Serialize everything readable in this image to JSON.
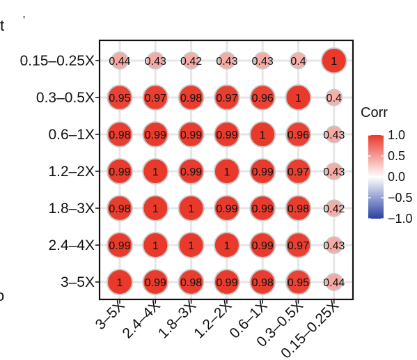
{
  "page": {
    "fragments": [
      "t",
      "'",
      "o"
    ]
  },
  "chart_data": {
    "type": "heatmap",
    "rows": [
      "0.15–0.25X",
      "0.3–0.5X",
      "0.6–1X",
      "1.2–2X",
      "1.8–3X",
      "2.4–4X",
      "3–5X"
    ],
    "columns": [
      "3–5X",
      "2.4–4X",
      "1.8–3X",
      "1.2–2X",
      "0.6–1X",
      "0.3–0.5X",
      "0.15–0.25X"
    ],
    "values": [
      [
        0.44,
        0.43,
        0.42,
        0.43,
        0.43,
        0.4,
        1
      ],
      [
        0.95,
        0.97,
        0.98,
        0.97,
        0.96,
        1,
        0.4
      ],
      [
        0.98,
        0.99,
        0.99,
        0.99,
        1,
        0.96,
        0.43
      ],
      [
        0.99,
        1,
        0.99,
        1,
        0.99,
        0.97,
        0.43
      ],
      [
        0.98,
        1,
        1,
        0.99,
        0.99,
        0.98,
        0.42
      ],
      [
        0.99,
        1,
        1,
        1,
        0.99,
        0.97,
        0.43
      ],
      [
        1,
        0.99,
        0.98,
        0.99,
        0.98,
        0.95,
        0.44
      ]
    ],
    "legend": {
      "title": "Corr",
      "ticks": [
        "1.0",
        "0.5",
        "0.0",
        "−0.5",
        "−1.0"
      ],
      "tick_values": [
        1.0,
        0.5,
        0.0,
        -0.5,
        -1.0
      ],
      "range": [
        -1,
        1
      ],
      "placement": "right"
    },
    "colors": {
      "high": "#e8392b",
      "mid": "#ffffff",
      "low": "#2b3fa3",
      "grid": "#e6e6e6",
      "circle_border": "#c9c9c9",
      "frame": "#000000"
    },
    "grid": true
  }
}
